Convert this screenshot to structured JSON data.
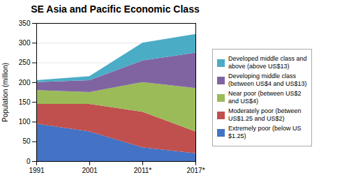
{
  "chart_data": {
    "type": "area",
    "title": "SE Asia and Pacific Economic Class",
    "ylabel": "Population (million)",
    "categories": [
      "1991",
      "2001",
      "2011*",
      "2017*"
    ],
    "series": [
      {
        "name": "Extremely poor (below US\n$1.25)",
        "color": "#4472C4",
        "values": [
          95,
          75,
          35,
          20
        ]
      },
      {
        "name": "Moderately poor (between\nUS$1.25 and US$2)",
        "color": "#C0504D",
        "values": [
          50,
          70,
          90,
          55
        ]
      },
      {
        "name": "Near poor (between US$2\nand US$4)",
        "color": "#9BBB59",
        "values": [
          35,
          30,
          75,
          110
        ]
      },
      {
        "name": "Developing middle class\n(between US$4 and US$13)",
        "color": "#8064A2",
        "values": [
          20,
          30,
          55,
          90
        ]
      },
      {
        "name": "Developed middle class and\nabove (above US$13)",
        "color": "#4BACC6",
        "values": [
          5,
          10,
          45,
          47
        ]
      }
    ],
    "ylim": [
      0,
      350
    ],
    "yticks": [
      0,
      50,
      100,
      150,
      200,
      250,
      300,
      350
    ],
    "grid": true,
    "stacked": true,
    "legend": "right"
  }
}
